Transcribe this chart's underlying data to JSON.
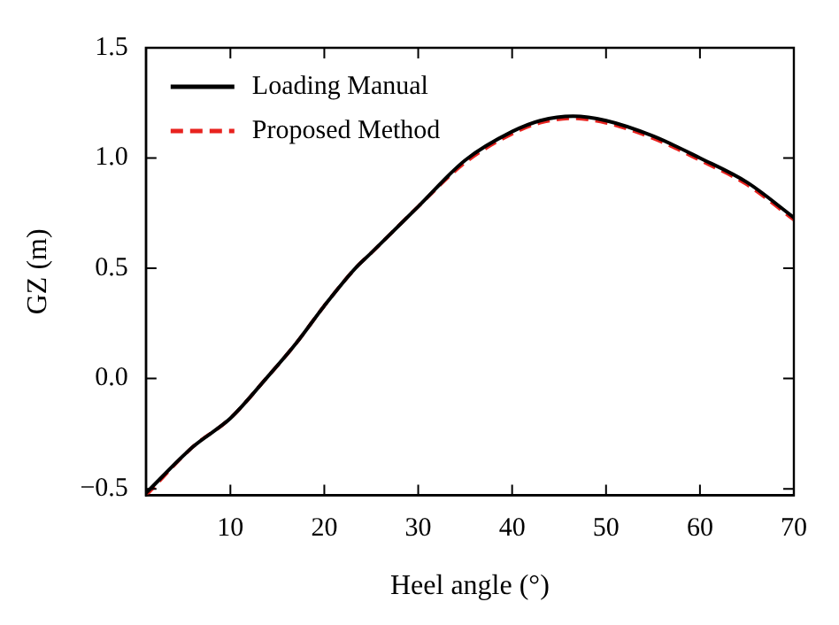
{
  "chart_data": {
    "type": "line",
    "xlabel": "Heel angle (°)",
    "ylabel": "GZ (m)",
    "xlim": [
      1,
      70
    ],
    "xticks": [
      10,
      20,
      30,
      40,
      50,
      60,
      70
    ],
    "ylim": [
      -0.53,
      1.5
    ],
    "yticks": [
      {
        "value": -0.5,
        "label": "−0.5"
      },
      {
        "value": 0,
        "label": "0.0"
      },
      {
        "value": 0.5,
        "label": "0.5"
      },
      {
        "value": 1,
        "label": "1.0"
      },
      {
        "value": 1.5,
        "label": "1.5"
      }
    ],
    "grid": false,
    "legend": "top left",
    "marker": "none",
    "series": [
      {
        "name": "Loading Manual",
        "color": "#000000",
        "line_style": "solid",
        "x": [
          1,
          6,
          10,
          13.8,
          17,
          20,
          23.3,
          25,
          30,
          35,
          40,
          43,
          46.5,
          50,
          55,
          60,
          65,
          70
        ],
        "values": [
          -0.52,
          -0.31,
          -0.18,
          0,
          0.16,
          0.33,
          0.5,
          0.57,
          0.78,
          0.99,
          1.12,
          1.17,
          1.19,
          1.17,
          1.1,
          1.0,
          0.89,
          0.73
        ]
      },
      {
        "name": "Proposed Method",
        "color": "#e8231f",
        "line_style": "dashed",
        "x": [
          1,
          6,
          10,
          13.8,
          17,
          20,
          23.3,
          25,
          30,
          35,
          40,
          43,
          46.5,
          50,
          55,
          60,
          65,
          70
        ],
        "values": [
          -0.53,
          -0.31,
          -0.18,
          0,
          0.16,
          0.33,
          0.5,
          0.57,
          0.78,
          0.98,
          1.11,
          1.16,
          1.18,
          1.16,
          1.09,
          0.99,
          0.88,
          0.72
        ]
      }
    ]
  }
}
